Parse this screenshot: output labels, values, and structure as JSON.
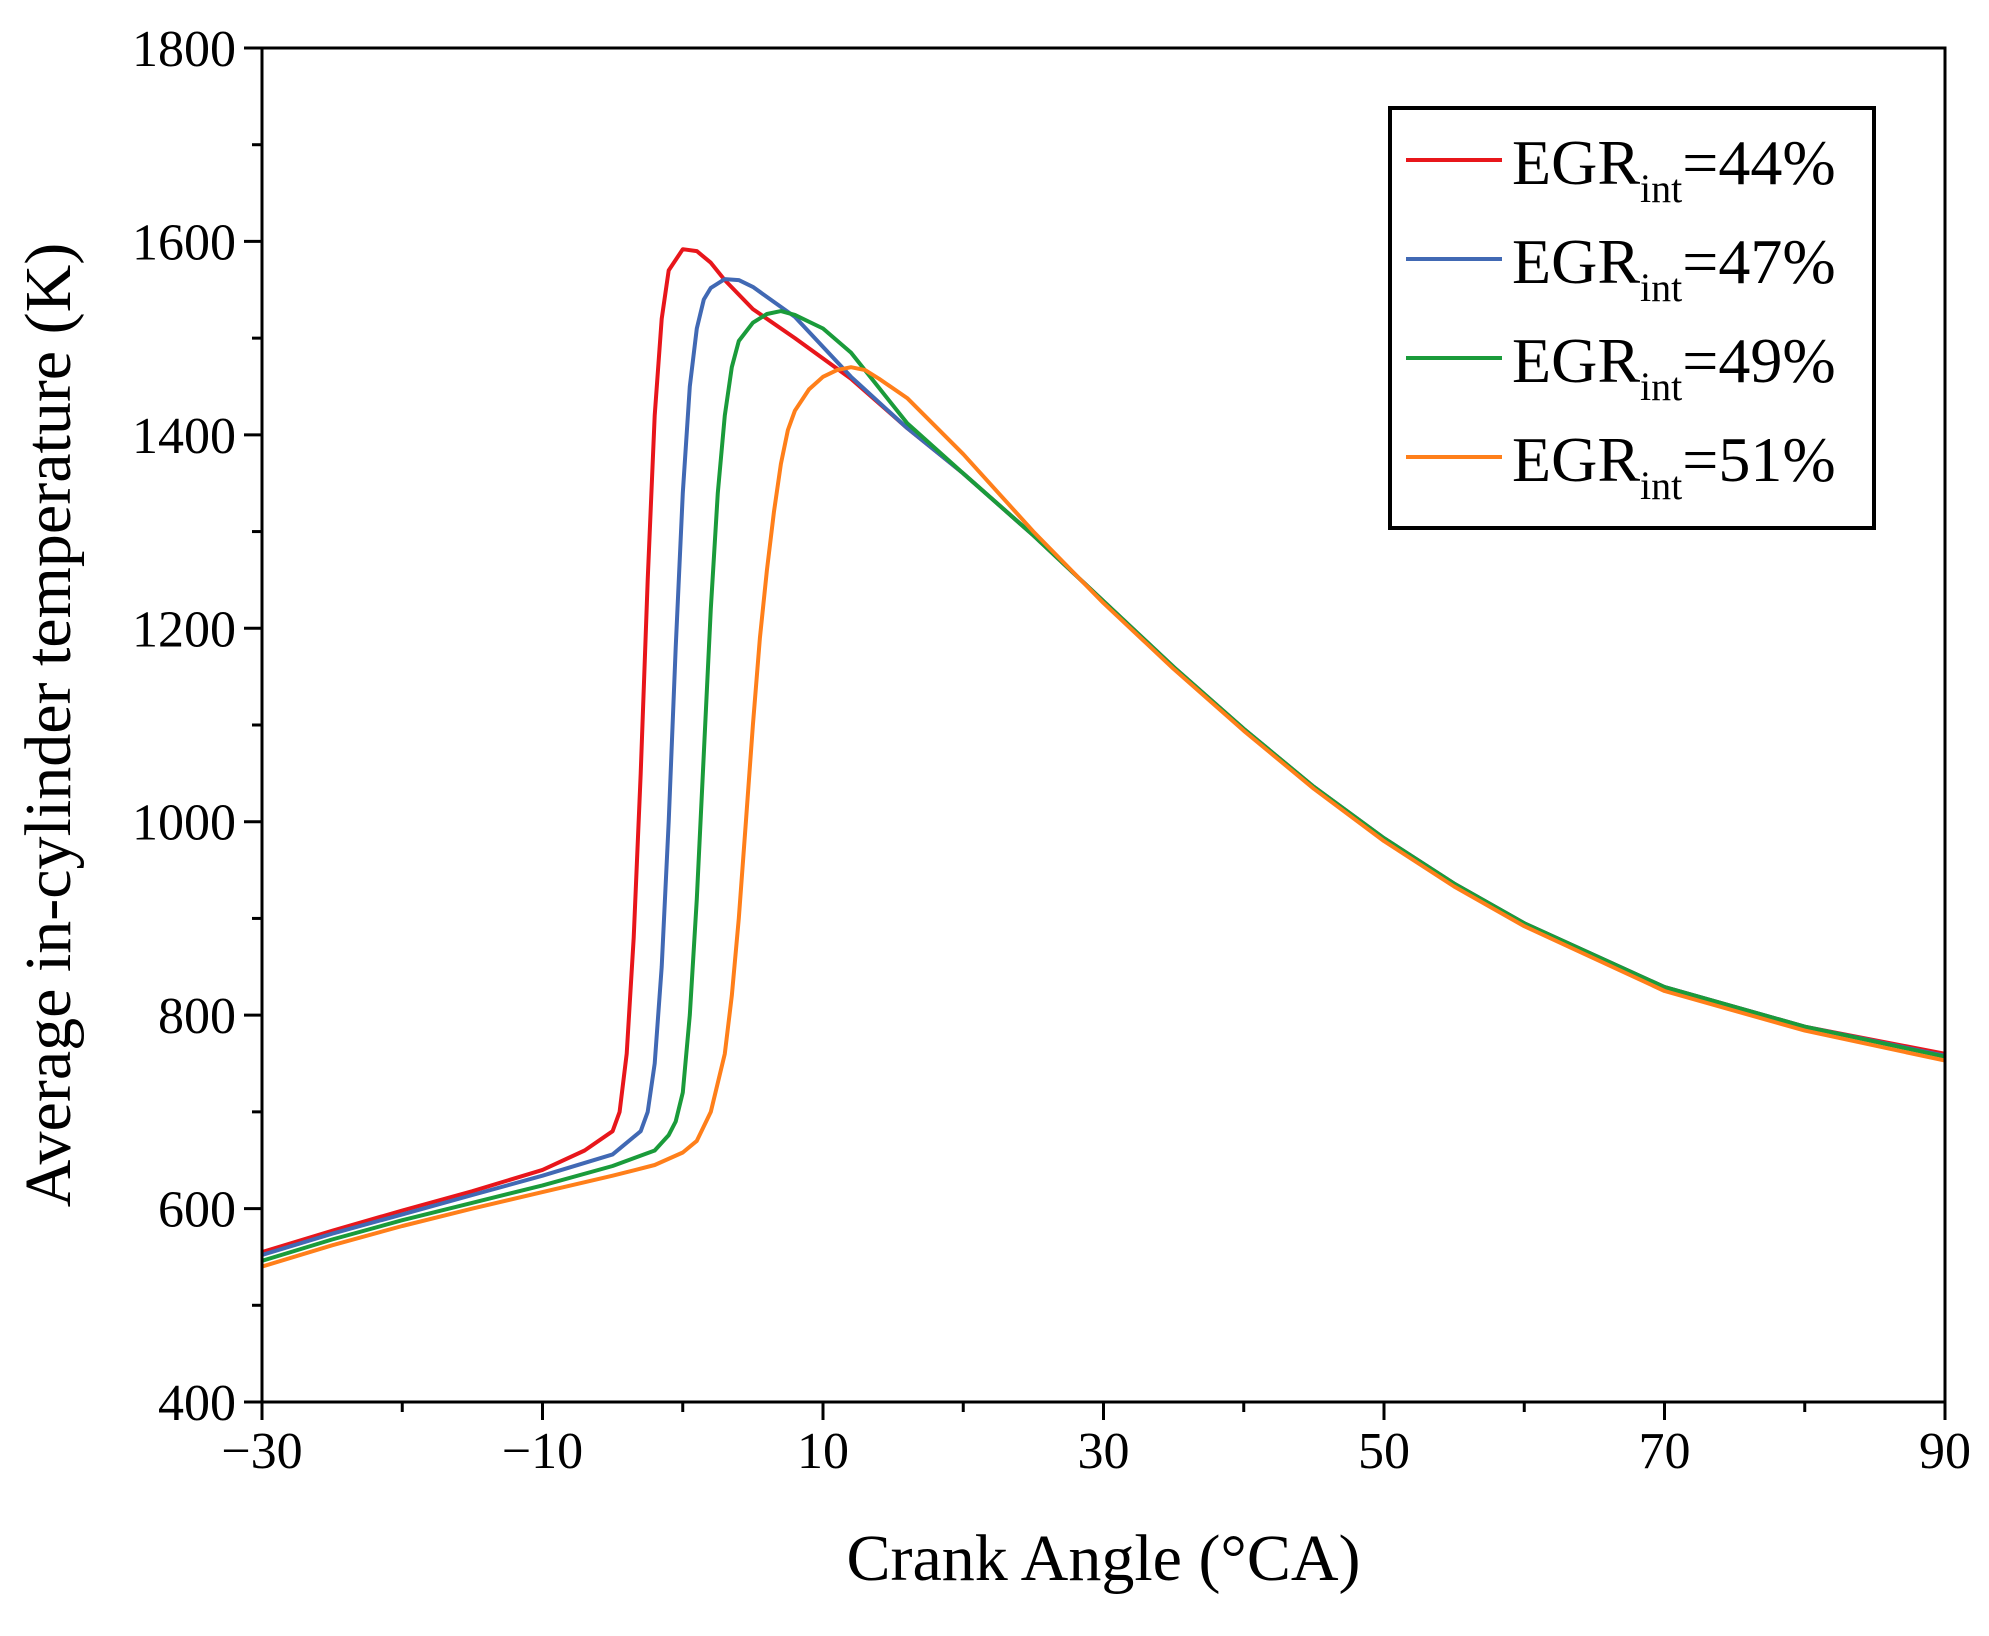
{
  "chart_data": {
    "type": "line",
    "title": "",
    "xlabel": "Crank Angle (°CA)",
    "ylabel": "Average in-cylinder temperature (K)",
    "xlim": [
      -30,
      90
    ],
    "ylim": [
      400,
      1800
    ],
    "xticks": [
      -30,
      -10,
      10,
      30,
      50,
      70,
      90
    ],
    "xtick_labels": [
      "−30",
      "−10",
      "10",
      "30",
      "50",
      "70",
      "90"
    ],
    "yticks": [
      400,
      600,
      800,
      1000,
      1200,
      1400,
      1600,
      1800
    ],
    "ytick_labels": [
      "400",
      "600",
      "800",
      "1000",
      "1200",
      "1400",
      "1600",
      "1800"
    ],
    "legend_position": "top-right",
    "series": [
      {
        "name": "EGR_int=44%",
        "legend_main": "EGR",
        "legend_sub": "int",
        "legend_suffix": "=44%",
        "color": "#e8161b",
        "x": [
          -30,
          -25,
          -20,
          -15,
          -10,
          -7,
          -5,
          -4.5,
          -4,
          -3.5,
          -3,
          -2.5,
          -2,
          -1.5,
          -1,
          0,
          1,
          2,
          3,
          5,
          8,
          12,
          16,
          20,
          25,
          30,
          35,
          40,
          45,
          50,
          55,
          60,
          70,
          80,
          90
        ],
        "y": [
          555,
          577,
          598,
          618,
          640,
          660,
          680,
          700,
          760,
          880,
          1050,
          1250,
          1420,
          1520,
          1570,
          1592,
          1590,
          1578,
          1560,
          1530,
          1500,
          1458,
          1407,
          1360,
          1296,
          1228,
          1160,
          1096,
          1036,
          983,
          936,
          895,
          829,
          788,
          760
        ]
      },
      {
        "name": "EGR_int=47%",
        "legend_main": "EGR",
        "legend_sub": "int",
        "legend_suffix": "=47%",
        "color": "#4169b4",
        "x": [
          -30,
          -25,
          -20,
          -15,
          -10,
          -5,
          -3,
          -2.5,
          -2,
          -1.5,
          -1,
          -0.5,
          0,
          0.5,
          1,
          1.5,
          2,
          3,
          4,
          5,
          8,
          12,
          16,
          20,
          25,
          30,
          35,
          40,
          45,
          50,
          55,
          60,
          70,
          80,
          90
        ],
        "y": [
          552,
          574,
          594,
          614,
          634,
          656,
          680,
          700,
          750,
          850,
          1000,
          1180,
          1340,
          1450,
          1510,
          1540,
          1552,
          1561,
          1560,
          1553,
          1522,
          1460,
          1407,
          1360,
          1296,
          1228,
          1160,
          1096,
          1036,
          983,
          936,
          895,
          829,
          788,
          758
        ]
      },
      {
        "name": "EGR_int=49%",
        "legend_main": "EGR",
        "legend_sub": "int",
        "legend_suffix": "=49%",
        "color": "#1a9b3a",
        "x": [
          -30,
          -25,
          -20,
          -15,
          -10,
          -5,
          -2,
          -1,
          -0.5,
          0,
          0.5,
          1,
          1.5,
          2,
          2.5,
          3,
          3.5,
          4,
          5,
          6,
          7,
          8,
          10,
          12,
          16,
          20,
          25,
          30,
          35,
          40,
          45,
          50,
          55,
          60,
          70,
          80,
          90
        ],
        "y": [
          546,
          568,
          588,
          606,
          624,
          644,
          660,
          676,
          690,
          720,
          800,
          920,
          1070,
          1220,
          1340,
          1420,
          1470,
          1497,
          1516,
          1525,
          1528,
          1524,
          1510,
          1485,
          1412,
          1360,
          1296,
          1228,
          1160,
          1096,
          1036,
          983,
          936,
          895,
          829,
          788,
          757
        ]
      },
      {
        "name": "EGR_int=51%",
        "legend_main": "EGR",
        "legend_sub": "int",
        "legend_suffix": "=51%",
        "color": "#ff7f1a",
        "x": [
          -30,
          -25,
          -20,
          -15,
          -10,
          -5,
          -2,
          0,
          1,
          2,
          3,
          3.5,
          4,
          4.5,
          5,
          5.5,
          6,
          6.5,
          7,
          7.5,
          8,
          9,
          10,
          11,
          12,
          13,
          14,
          16,
          20,
          25,
          30,
          35,
          40,
          45,
          50,
          55,
          60,
          70,
          80,
          90
        ],
        "y": [
          540,
          562,
          582,
          600,
          617,
          634,
          645,
          658,
          670,
          700,
          760,
          820,
          900,
          1000,
          1100,
          1190,
          1260,
          1320,
          1370,
          1405,
          1425,
          1447,
          1460,
          1467,
          1470,
          1467,
          1458,
          1438,
          1380,
          1300,
          1226,
          1158,
          1094,
          1034,
          980,
          933,
          892,
          825,
          784,
          753
        ]
      }
    ]
  }
}
